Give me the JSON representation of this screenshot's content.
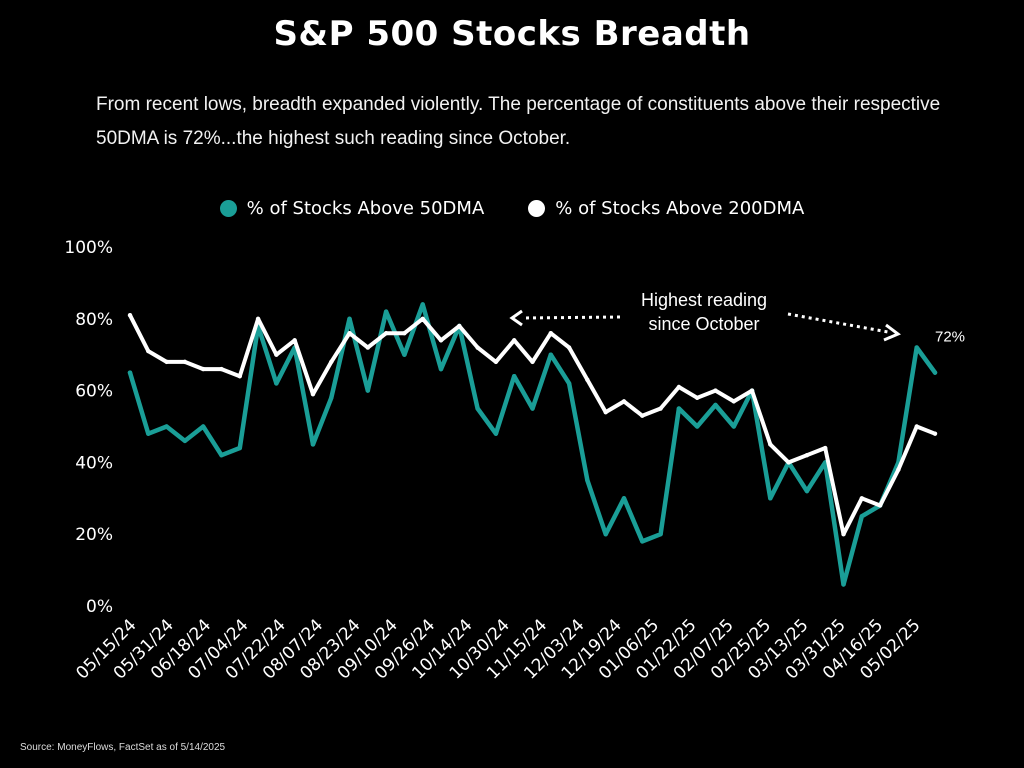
{
  "title": "S&P 500 Stocks Breadth",
  "subtitle": "From recent lows, breadth expanded violently. The percentage of constituents above their respective 50DMA is 72%...the highest such reading since October.",
  "source": "Source: MoneyFlows, FactSet as of 5/14/2025",
  "colors": {
    "background": "#000000",
    "series_50dma": "#1a9e97",
    "series_200dma": "#ffffff"
  },
  "chart_data": {
    "type": "line",
    "title": "S&P 500 Stocks Breadth",
    "xlabel": "",
    "ylabel": "",
    "ylim": [
      0,
      100
    ],
    "y_ticks": [
      "0%",
      "20%",
      "40%",
      "60%",
      "80%",
      "100%"
    ],
    "y_tick_values": [
      0,
      20,
      40,
      60,
      80,
      100
    ],
    "x_tick_labels": [
      "05/15/24",
      "05/31/24",
      "06/18/24",
      "07/04/24",
      "07/22/24",
      "08/07/24",
      "08/23/24",
      "09/10/24",
      "09/26/24",
      "10/14/24",
      "10/30/24",
      "11/15/24",
      "12/03/24",
      "12/19/24",
      "01/06/25",
      "01/22/25",
      "02/07/25",
      "02/25/25",
      "03/13/25",
      "03/31/25",
      "04/16/25",
      "05/02/25"
    ],
    "grid": false,
    "legend_position": "top-center",
    "x": [
      "05/15/24",
      "05/21/24",
      "05/31/24",
      "06/10/24",
      "06/18/24",
      "06/26/24",
      "07/04/24",
      "07/12/24",
      "07/22/24",
      "07/30/24",
      "08/07/24",
      "08/15/24",
      "08/23/24",
      "09/02/24",
      "09/10/24",
      "09/18/24",
      "09/26/24",
      "10/04/24",
      "10/14/24",
      "10/22/24",
      "10/30/24",
      "11/07/24",
      "11/15/24",
      "11/25/24",
      "12/03/24",
      "12/11/24",
      "12/19/24",
      "12/27/24",
      "01/06/25",
      "01/14/25",
      "01/22/25",
      "01/30/25",
      "02/07/25",
      "02/17/25",
      "02/25/25",
      "03/05/25",
      "03/13/25",
      "03/21/25",
      "03/31/25",
      "04/08/25",
      "04/16/25",
      "04/24/25",
      "05/02/25",
      "05/08/25",
      "05/14/25"
    ],
    "series": [
      {
        "name": "% of Stocks Above 50DMA",
        "color": "#1a9e97",
        "values": [
          65,
          48,
          50,
          46,
          50,
          42,
          44,
          78,
          62,
          72,
          45,
          58,
          80,
          60,
          82,
          70,
          84,
          66,
          78,
          55,
          48,
          64,
          55,
          70,
          62,
          35,
          20,
          30,
          18,
          20,
          55,
          50,
          56,
          50,
          60,
          30,
          40,
          32,
          40,
          6,
          25,
          28,
          40,
          72,
          65
        ]
      },
      {
        "name": "% of Stocks Above 200DMA",
        "color": "#ffffff",
        "values": [
          81,
          71,
          68,
          68,
          66,
          66,
          64,
          80,
          70,
          74,
          59,
          68,
          76,
          72,
          76,
          76,
          80,
          74,
          78,
          72,
          68,
          74,
          68,
          76,
          72,
          63,
          54,
          57,
          53,
          55,
          61,
          58,
          60,
          57,
          60,
          45,
          40,
          42,
          44,
          20,
          30,
          28,
          38,
          50,
          48
        ]
      }
    ],
    "annotations": [
      {
        "text_line1": "Highest reading",
        "text_line2": "since October"
      },
      {
        "text": "72%"
      }
    ]
  }
}
